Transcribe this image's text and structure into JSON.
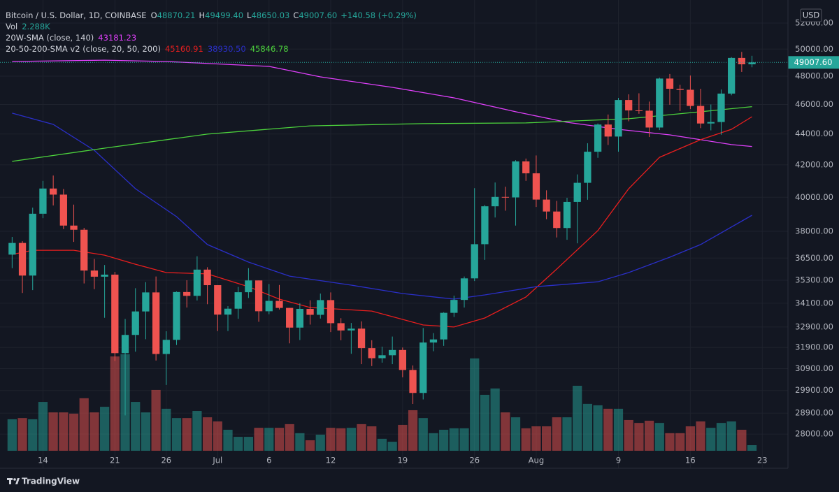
{
  "chart_data": {
    "type": "candlestick",
    "title": "Bitcoin / U.S. Dollar, 1D, COINBASE",
    "x": [
      "06-11",
      "06-12",
      "06-13",
      "06-14",
      "06-15",
      "06-16",
      "06-17",
      "06-18",
      "06-19",
      "06-20",
      "06-21",
      "06-22",
      "06-23",
      "06-24",
      "06-25",
      "06-26",
      "06-27",
      "06-28",
      "06-29",
      "06-30",
      "07-01",
      "07-02",
      "07-03",
      "07-04",
      "07-05",
      "07-06",
      "07-07",
      "07-08",
      "07-09",
      "07-10",
      "07-11",
      "07-12",
      "07-13",
      "07-14",
      "07-15",
      "07-16",
      "07-17",
      "07-18",
      "07-19",
      "07-20",
      "07-21",
      "07-22",
      "07-23",
      "07-24",
      "07-25",
      "07-26",
      "07-27",
      "07-28",
      "07-29",
      "07-30",
      "07-31",
      "08-01",
      "08-02",
      "08-03",
      "08-04",
      "08-05",
      "08-06",
      "08-07",
      "08-08",
      "08-09",
      "08-10",
      "08-11",
      "08-12",
      "08-13",
      "08-14",
      "08-15",
      "08-16",
      "08-17",
      "08-18",
      "08-19",
      "08-20",
      "08-21",
      "08-22"
    ],
    "open": [
      36690,
      37340,
      35550,
      39020,
      40530,
      40160,
      38330,
      38090,
      35820,
      35490,
      35600,
      31630,
      32510,
      33680,
      34660,
      31590,
      32270,
      34680,
      34480,
      35870,
      35040,
      33520,
      33820,
      34670,
      35290,
      33690,
      34220,
      33860,
      32870,
      33810,
      33510,
      34260,
      33090,
      32730,
      32820,
      31870,
      31390,
      31530,
      31780,
      30840,
      29790,
      32140,
      32290,
      33610,
      34270,
      35400,
      37270,
      39460,
      40020,
      39990,
      42220,
      41470,
      39860,
      39150,
      38190,
      39720,
      40880,
      42840,
      44630,
      43830,
      46310,
      45590,
      45570,
      44430,
      47830,
      47100,
      47030,
      45900,
      44700,
      44800,
      46760,
      49340,
      48870.21
    ],
    "high": [
      37680,
      37440,
      39380,
      41000,
      41330,
      40500,
      39560,
      38200,
      36450,
      36120,
      35750,
      33300,
      34880,
      35200,
      35500,
      32690,
      34710,
      35300,
      36600,
      36000,
      35040,
      33950,
      34950,
      35950,
      35290,
      35100,
      35050,
      33860,
      34100,
      34250,
      34600,
      34660,
      33340,
      33100,
      33180,
      32250,
      31940,
      32430,
      31900,
      31050,
      32850,
      32600,
      33640,
      34490,
      35500,
      40550,
      39540,
      40900,
      40640,
      42300,
      42400,
      42600,
      40420,
      39780,
      39970,
      41400,
      43390,
      44700,
      45310,
      46460,
      46710,
      46780,
      46200,
      47900,
      48160,
      47380,
      48050,
      47100,
      46000,
      47050,
      49400,
      49790,
      49499.4
    ],
    "low": [
      35950,
      34630,
      34780,
      38760,
      39510,
      38130,
      37400,
      35130,
      34830,
      33360,
      31260,
      28800,
      31700,
      32300,
      31280,
      30150,
      32020,
      33880,
      34240,
      34050,
      32700,
      32700,
      33310,
      34370,
      33160,
      33540,
      33780,
      32100,
      32260,
      33020,
      33320,
      32650,
      32250,
      31600,
      31110,
      31020,
      31180,
      31110,
      30500,
      29300,
      29500,
      31720,
      31980,
      33400,
      33880,
      35260,
      36400,
      38800,
      39200,
      38330,
      41000,
      39420,
      38700,
      37650,
      37520,
      37320,
      39850,
      42450,
      43280,
      42840,
      44850,
      45360,
      43800,
      44260,
      45980,
      45550,
      45680,
      44390,
      44240,
      43950,
      46640,
      48310,
      48650.03
    ],
    "close": [
      37340,
      35550,
      39020,
      40530,
      40160,
      38330,
      38090,
      35820,
      35490,
      35600,
      31630,
      32510,
      33680,
      34660,
      31590,
      32270,
      34680,
      34480,
      35870,
      35040,
      33520,
      33820,
      34670,
      35290,
      33690,
      34220,
      33860,
      32870,
      33810,
      33510,
      34260,
      33090,
      32730,
      32820,
      31870,
      31390,
      31530,
      31780,
      30840,
      29790,
      32140,
      32290,
      33610,
      34270,
      35400,
      37270,
      39460,
      40020,
      39990,
      42220,
      41470,
      39860,
      39150,
      38190,
      39720,
      40880,
      42840,
      44630,
      43830,
      46310,
      45590,
      45570,
      44430,
      47830,
      47100,
      47030,
      45900,
      44700,
      44800,
      46760,
      49340,
      48870,
      49007.6
    ],
    "up_color": "#26a69a",
    "down_color": "#ef5350",
    "ohlc_labels": [
      "O",
      "H",
      "L",
      "C"
    ],
    "last_labels": [
      "48870.21",
      "49499.40",
      "48650.03",
      "49007.60"
    ],
    "change_label": "+140.58 (+0.29%)",
    "volume": {
      "name": "Vol",
      "value_label": "2.288K",
      "lim": [
        0,
        181.6
      ],
      "values": [
        12.9,
        13.4,
        12.9,
        20.0,
        15.7,
        15.7,
        15.2,
        21.5,
        15.7,
        18.0,
        38.6,
        39.5,
        20.0,
        15.7,
        24.9,
        17.2,
        13.4,
        13.4,
        16.3,
        13.7,
        12.0,
        8.6,
        5.7,
        5.7,
        9.4,
        9.4,
        9.4,
        10.9,
        7.2,
        4.3,
        6.6,
        9.4,
        9.2,
        9.4,
        10.9,
        10.0,
        4.9,
        3.7,
        10.6,
        16.6,
        13.4,
        7.2,
        8.6,
        9.2,
        9.2,
        37.8,
        22.9,
        25.5,
        15.7,
        13.7,
        9.2,
        10.0,
        10.0,
        13.7,
        13.7,
        26.6,
        19.2,
        18.6,
        17.2,
        17.2,
        12.6,
        11.4,
        12.3,
        11.4,
        7.2,
        7.2,
        10.0,
        12.0,
        9.4,
        11.4,
        12.0,
        8.6,
        2.288
      ]
    },
    "indicators": [
      {
        "name": "20W-SMA (close, 140)",
        "lines": [
          {
            "color": "#e040fb",
            "value_label": "43181.23",
            "x": [
              "06-11",
              "06-20",
              "06-26",
              "07-06",
              "07-11",
              "07-18",
              "07-24",
              "07-30",
              "08-04",
              "08-09",
              "08-14",
              "08-17",
              "08-20",
              "08-22"
            ],
            "values": [
              49075,
              49175,
              49075,
              48715,
              47950,
              47200,
              46460,
              45500,
              44780,
              44310,
              43940,
              43620,
              43300,
              43181.23
            ]
          }
        ]
      },
      {
        "name": "20-50-200-SMA v2 (close, 20, 50, 200)",
        "lines": [
          {
            "color": "#e91e1e",
            "value_label": "45160.91",
            "x": [
              "06-11",
              "06-13",
              "06-17",
              "06-20",
              "06-23",
              "06-26",
              "06-30",
              "07-04",
              "07-07",
              "07-10",
              "07-16",
              "07-21",
              "07-24",
              "07-27",
              "07-31",
              "08-03",
              "08-07",
              "08-10",
              "08-13",
              "08-17",
              "08-20",
              "08-22"
            ],
            "values": [
              36700,
              36930,
              36930,
              36660,
              36160,
              35710,
              35640,
              34960,
              34310,
              33880,
              33700,
              33000,
              32900,
              33350,
              34420,
              35900,
              38040,
              40520,
              42480,
              43620,
              44310,
              45160.91
            ]
          },
          {
            "color": "#2a2fc8",
            "value_label": "38930.50",
            "x": [
              "06-11",
              "06-15",
              "06-19",
              "06-23",
              "06-27",
              "06-30",
              "07-04",
              "07-08",
              "07-14",
              "07-19",
              "07-24",
              "07-27",
              "08-01",
              "08-07",
              "08-10",
              "08-14",
              "08-17",
              "08-22"
            ],
            "values": [
              45400,
              44640,
              42930,
              40520,
              38850,
              37250,
              36280,
              35520,
              35040,
              34600,
              34310,
              34530,
              34960,
              35220,
              35710,
              36550,
              37250,
              38930.5
            ]
          },
          {
            "color": "#4cd23c",
            "value_label": "45846.78",
            "x": [
              "06-11",
              "06-20",
              "06-30",
              "07-10",
              "07-21",
              "07-31",
              "08-10",
              "08-17",
              "08-22"
            ],
            "values": [
              42220,
              43070,
              43990,
              44540,
              44690,
              44740,
              45020,
              45500,
              45846.78
            ]
          }
        ]
      }
    ],
    "log_scale": true,
    "ylim": [
      27305,
      53274
    ],
    "yticks": [
      {
        "value": 52000,
        "label": "52000.00"
      },
      {
        "value": 50000,
        "label": "50000.00"
      },
      {
        "value": 48000,
        "label": "48000.00"
      },
      {
        "value": 46000,
        "label": "46000.00"
      },
      {
        "value": 44000,
        "label": "44000.00"
      },
      {
        "value": 42000,
        "label": "42000.00"
      },
      {
        "value": 40000,
        "label": "40000.00"
      },
      {
        "value": 38000,
        "label": "38000.00"
      },
      {
        "value": 36500,
        "label": "36500.00"
      },
      {
        "value": 35300,
        "label": "35300.00"
      },
      {
        "value": 34100,
        "label": "34100.00"
      },
      {
        "value": 32900,
        "label": "32900.00"
      },
      {
        "value": 31900,
        "label": "31900.00"
      },
      {
        "value": 30900,
        "label": "30900.00"
      },
      {
        "value": 29900,
        "label": "29900.00"
      },
      {
        "value": 28900,
        "label": "28900.00"
      },
      {
        "value": 28000,
        "label": "28000.00"
      }
    ],
    "xticks": [
      {
        "value": "06-14",
        "label": "14"
      },
      {
        "value": "06-21",
        "label": "21"
      },
      {
        "value": "06-26",
        "label": "26"
      },
      {
        "value": "07-01",
        "label": "Jul"
      },
      {
        "value": "07-06",
        "label": "6"
      },
      {
        "value": "07-12",
        "label": "12"
      },
      {
        "value": "07-19",
        "label": "19"
      },
      {
        "value": "07-26",
        "label": "26"
      },
      {
        "value": "08-01",
        "label": "Aug"
      },
      {
        "value": "08-09",
        "label": "9"
      },
      {
        "value": "08-16",
        "label": "16"
      },
      {
        "value": "08-23",
        "label": "23"
      }
    ],
    "grid": true,
    "currency": "USD",
    "brand": "TradingView"
  }
}
